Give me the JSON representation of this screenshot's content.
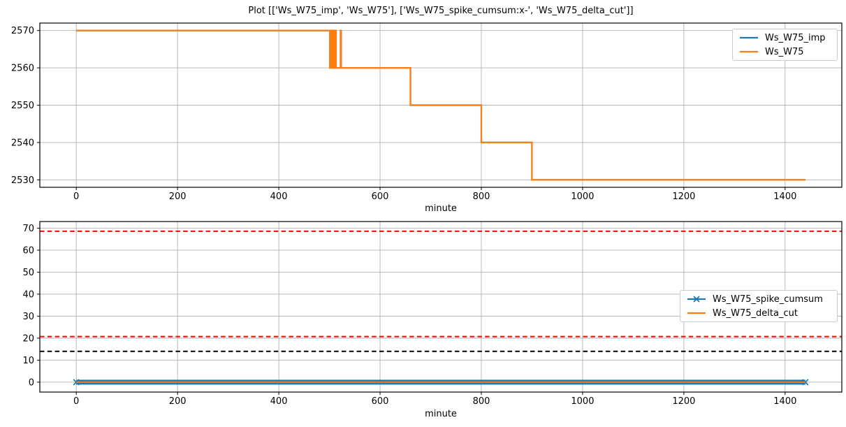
{
  "title": "Plot [['Ws_W75_imp', 'Ws_W75'], ['Ws_W75_spike_cumsum:x-', 'Ws_W75_delta_cut']]",
  "colors": {
    "blue": "#1f77b4",
    "orange": "#ff7f0e",
    "red": "#ff0000",
    "black": "#000000",
    "grid": "#b2b2b2",
    "spine": "#000000",
    "legend_border": "#cccccc",
    "background": "#ffffff"
  },
  "chart_data": [
    {
      "type": "line",
      "title": "",
      "xlabel": "minute",
      "ylabel": "",
      "xlim": [
        -72,
        1512
      ],
      "ylim": [
        2528,
        2572
      ],
      "xticks": [
        0,
        200,
        400,
        600,
        800,
        1000,
        1200,
        1400
      ],
      "yticks": [
        2530,
        2540,
        2550,
        2560,
        2570
      ],
      "grid": true,
      "legend_position": "upper right",
      "series": [
        {
          "name": "Ws_W75_imp",
          "color": "#1f77b4",
          "style": "step",
          "linewidth": 2.2,
          "points": [
            [
              0,
              2570
            ],
            [
              501,
              2560
            ],
            [
              503,
              2570
            ],
            [
              504,
              2560
            ],
            [
              506,
              2570
            ],
            [
              507,
              2560
            ],
            [
              509,
              2570
            ],
            [
              510,
              2560
            ],
            [
              512,
              2570
            ],
            [
              513,
              2560
            ],
            [
              522,
              2570
            ],
            [
              523,
              2560
            ],
            [
              660,
              2550
            ],
            [
              800,
              2540
            ],
            [
              900,
              2530
            ],
            [
              1440,
              2530
            ]
          ]
        },
        {
          "name": "Ws_W75",
          "color": "#ff7f0e",
          "style": "step",
          "linewidth": 2.2,
          "points": [
            [
              0,
              2570
            ],
            [
              501,
              2560
            ],
            [
              503,
              2570
            ],
            [
              504,
              2560
            ],
            [
              506,
              2570
            ],
            [
              507,
              2560
            ],
            [
              509,
              2570
            ],
            [
              510,
              2560
            ],
            [
              512,
              2570
            ],
            [
              513,
              2560
            ],
            [
              522,
              2570
            ],
            [
              523,
              2560
            ],
            [
              660,
              2550
            ],
            [
              800,
              2540
            ],
            [
              900,
              2530
            ],
            [
              1440,
              2530
            ]
          ]
        }
      ]
    },
    {
      "type": "line",
      "title": "",
      "xlabel": "minute",
      "ylabel": "",
      "xlim": [
        -72,
        1512
      ],
      "ylim": [
        -4.5,
        73
      ],
      "xticks": [
        0,
        200,
        400,
        600,
        800,
        1000,
        1200,
        1400
      ],
      "yticks": [
        0,
        10,
        20,
        30,
        40,
        50,
        60,
        70
      ],
      "grid": true,
      "legend_position": "center right",
      "series": [
        {
          "name": "Ws_W75_spike_cumsum",
          "color": "#1f77b4",
          "style": "line",
          "marker": "x",
          "linewidth": 7,
          "points": [
            [
              0,
              0
            ],
            [
              1440,
              0
            ]
          ]
        },
        {
          "name": "Ws_W75_delta_cut",
          "color": "#ff7f0e",
          "style": "line",
          "linewidth": 1.8,
          "points": [
            [
              0,
              0
            ],
            [
              1440,
              0
            ]
          ]
        }
      ],
      "hlines": [
        {
          "y": 68.6,
          "color": "#ff0000",
          "style": "dashed"
        },
        {
          "y": 20.7,
          "color": "#ff0000",
          "style": "dashed"
        },
        {
          "y": 14,
          "color": "#000000",
          "style": "dashed"
        }
      ]
    }
  ]
}
